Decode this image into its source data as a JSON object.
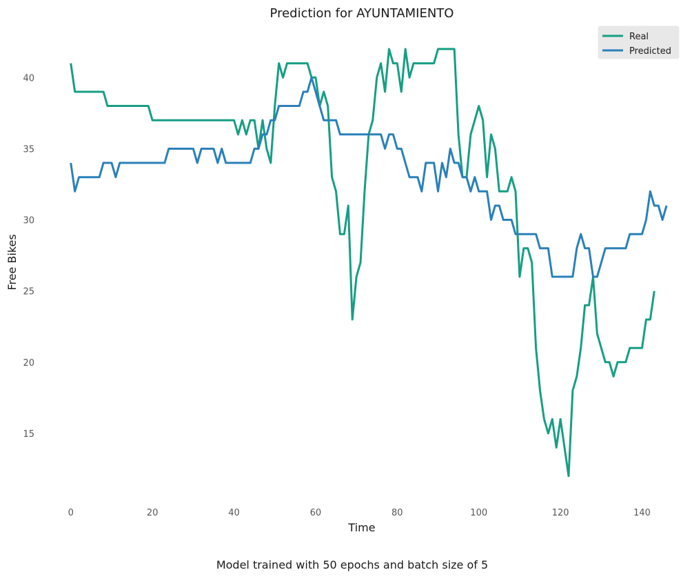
{
  "chart_data": {
    "type": "line",
    "title": "Prediction for AYUNTAMIENTO",
    "xlabel": "Time",
    "ylabel": "Free Bikes",
    "caption": "Model trained with 50 epochs and batch size of 5",
    "xlim": [
      -3.5,
      146.5
    ],
    "ylim": [
      10.1,
      43.7
    ],
    "x_ticks": [
      0,
      20,
      40,
      60,
      80,
      100,
      120,
      140
    ],
    "y_ticks": [
      15,
      20,
      25,
      30,
      35,
      40
    ],
    "grid": false,
    "legend": {
      "position": "top-right"
    },
    "series": [
      {
        "name": "Real",
        "color": "#169e83",
        "values": [
          41,
          39,
          39,
          39,
          39,
          39,
          39,
          39,
          39,
          38,
          38,
          38,
          38,
          38,
          38,
          38,
          38,
          38,
          38,
          38,
          37,
          37,
          37,
          37,
          37,
          37,
          37,
          37,
          37,
          37,
          37,
          37,
          37,
          37,
          37,
          37,
          37,
          37,
          37,
          37,
          37,
          36,
          37,
          36,
          37,
          37,
          35,
          37,
          35,
          34,
          38,
          41,
          40,
          41,
          41,
          41,
          41,
          41,
          41,
          40,
          40,
          38,
          39,
          38,
          33,
          32,
          29,
          29,
          31,
          23,
          26,
          27,
          32,
          36,
          37,
          40,
          41,
          39,
          42,
          41,
          41,
          39,
          42,
          40,
          41,
          41,
          41,
          41,
          41,
          41,
          42,
          42,
          42,
          42,
          42,
          36,
          33,
          33,
          36,
          37,
          38,
          37,
          33,
          36,
          35,
          32,
          32,
          32,
          33,
          32,
          26,
          28,
          28,
          27,
          21,
          18,
          16,
          15,
          16,
          14,
          16,
          14,
          12,
          18,
          19,
          21,
          24,
          24,
          26,
          22,
          21,
          20,
          20,
          19,
          20,
          20,
          20,
          21,
          21,
          21,
          21,
          23,
          23,
          25
        ]
      },
      {
        "name": "Predicted",
        "color": "#2980b9",
        "values": [
          34,
          32,
          33,
          33,
          33,
          33,
          33,
          33,
          34,
          34,
          34,
          33,
          34,
          34,
          34,
          34,
          34,
          34,
          34,
          34,
          34,
          34,
          34,
          34,
          35,
          35,
          35,
          35,
          35,
          35,
          35,
          34,
          35,
          35,
          35,
          35,
          34,
          35,
          34,
          34,
          34,
          34,
          34,
          34,
          34,
          35,
          35,
          36,
          36,
          37,
          37,
          38,
          38,
          38,
          38,
          38,
          38,
          39,
          39,
          40,
          39,
          38,
          37,
          37,
          37,
          37,
          36,
          36,
          36,
          36,
          36,
          36,
          36,
          36,
          36,
          36,
          36,
          35,
          36,
          36,
          35,
          35,
          34,
          33,
          33,
          33,
          32,
          34,
          34,
          34,
          32,
          34,
          33,
          35,
          34,
          34,
          33,
          33,
          32,
          33,
          32,
          32,
          32,
          30,
          31,
          31,
          30,
          30,
          30,
          29,
          29,
          29,
          29,
          29,
          29,
          28,
          28,
          28,
          26,
          26,
          26,
          26,
          26,
          26,
          28,
          29,
          28,
          28,
          26,
          26,
          27,
          28,
          28,
          28,
          28,
          28,
          28,
          29,
          29,
          29,
          29,
          30,
          32,
          31,
          31,
          30,
          31
        ]
      }
    ]
  }
}
